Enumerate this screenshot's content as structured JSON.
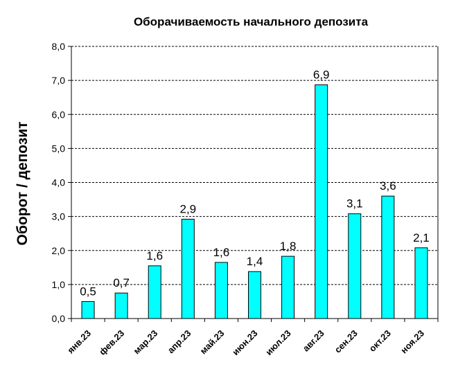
{
  "chart_data": {
    "type": "bar",
    "title": "Оборачиваемость начального депозита",
    "xlabel": "",
    "ylabel": "Оборот / депозит",
    "categories": [
      "янв.23",
      "фев.23",
      "мар.23",
      "апр.23",
      "май.23",
      "июн.23",
      "июл.23",
      "авг.23",
      "сен.23",
      "окт.23",
      "ноя.23"
    ],
    "values": [
      0.5,
      0.75,
      1.55,
      2.92,
      1.65,
      1.38,
      1.83,
      6.87,
      3.08,
      3.6,
      2.08
    ],
    "data_labels": [
      "0,5",
      "0,7",
      "1,6",
      "2,9",
      "1,6",
      "1,4",
      "1,8",
      "6,9",
      "3,1",
      "3,6",
      "2,1"
    ],
    "ylim": [
      0,
      8
    ],
    "yticks": [
      "0,0",
      "1,0",
      "2,0",
      "3,0",
      "4,0",
      "5,0",
      "6,0",
      "7,0",
      "8,0"
    ],
    "grid": true,
    "legend": "none",
    "colors": {
      "bar": "#00ffff",
      "edge": "#000000"
    }
  }
}
